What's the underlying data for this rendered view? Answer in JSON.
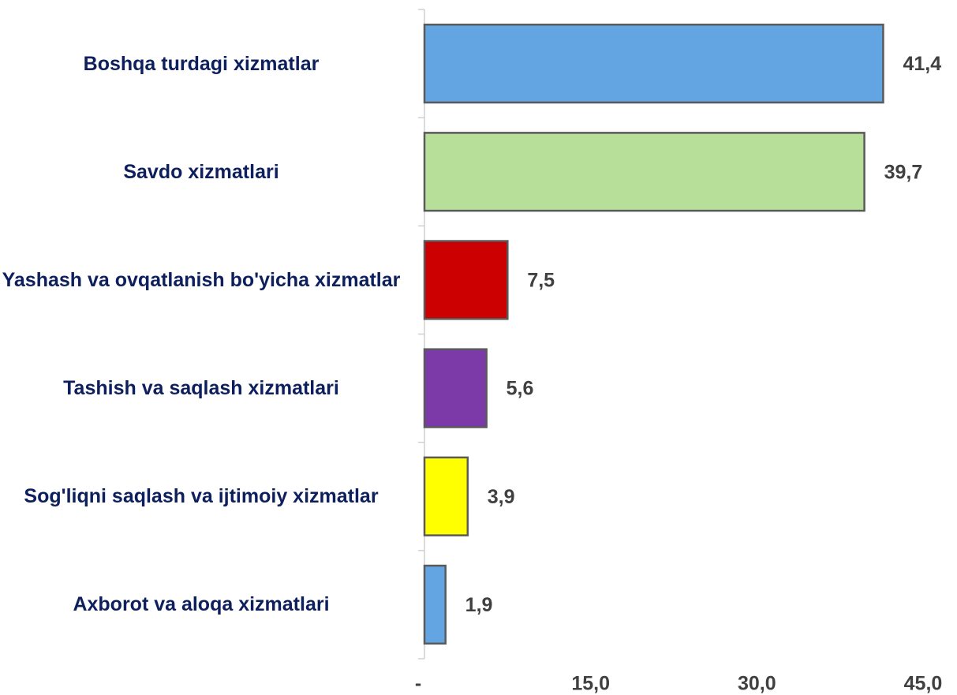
{
  "chart_data": {
    "type": "hbar",
    "categories": [
      "Boshqa turdagi xizmatlar",
      "Savdo xizmatlari",
      "Yashash va ovqatlanish bo'yicha xizmatlar",
      "Tashish va saqlash xizmatlari",
      "Sog'liqni saqlash va ijtimoiy xizmatlar",
      "Axborot va aloqa xizmatlari"
    ],
    "values": [
      41.4,
      39.7,
      7.5,
      5.6,
      3.9,
      1.9
    ],
    "value_labels": [
      "41,4",
      "39,7",
      "7,5",
      "5,6",
      "3,9",
      "1,9"
    ],
    "colors": [
      "#63a4e3",
      "#b7df9a",
      "#cc0000",
      "#7c3aa8",
      "#ffff00",
      "#63a4e3"
    ],
    "xlim": [
      0,
      45
    ],
    "xticks": [
      {
        "value": 0,
        "label": "-"
      },
      {
        "value": 15,
        "label": "15,0"
      },
      {
        "value": 30,
        "label": "30,0"
      },
      {
        "value": 45,
        "label": "45,0"
      }
    ]
  }
}
